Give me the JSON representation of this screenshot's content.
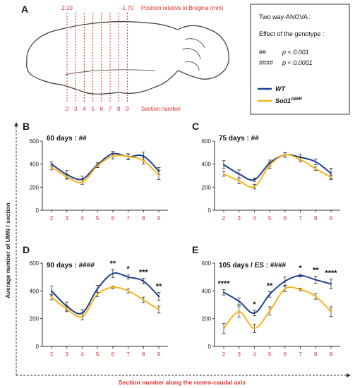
{
  "panel_a": {
    "letter": "A",
    "top_labels": [
      "2.10",
      "-1.70"
    ],
    "position_caption": "Position relative to Bregma (mm)",
    "section_numbers": [
      "2",
      "3",
      "4",
      "5",
      "6",
      "7",
      "8",
      "9"
    ],
    "section_caption": "Section number"
  },
  "stats_box": {
    "title": "Two way-ANOVA :",
    "subtitle": "Effect of the genotype :",
    "rows": [
      {
        "symbol": "##",
        "text": "p < 0.001"
      },
      {
        "symbol": "####",
        "text": "p < 0.0001"
      }
    ]
  },
  "legend": {
    "entries": [
      {
        "label": "WT",
        "superscript": "",
        "color": "#1f3f8f"
      },
      {
        "label": "Sod1",
        "superscript": "G86R",
        "color": "#f5b51b"
      }
    ]
  },
  "y_axis_label": "Average number of UMN / section",
  "x_axis_label": "Section number along the rostro-caudal axis",
  "colors": {
    "wt": "#1f3f8f",
    "mutant": "#f5b51b",
    "red": "#e03030"
  },
  "chart_data": [
    {
      "type": "line",
      "letter": "B",
      "title": "60 days : ##",
      "x": [
        2,
        3,
        4,
        5,
        6,
        7,
        8,
        9
      ],
      "ylim": [
        0,
        600
      ],
      "yticks": [
        "0",
        "200",
        "400",
        "600"
      ],
      "series": [
        {
          "name": "WT",
          "values": [
            400,
            310,
            270,
            395,
            490,
            465,
            470,
            340
          ],
          "err": [
            20,
            35,
            25,
            20,
            20,
            25,
            35,
            30
          ]
        },
        {
          "name": "Sod1G86R",
          "values": [
            375,
            290,
            245,
            385,
            470,
            465,
            430,
            305
          ],
          "err": [
            25,
            20,
            20,
            15,
            25,
            20,
            30,
            40
          ]
        }
      ],
      "stars": [
        "",
        "",
        "",
        "",
        "",
        "",
        "",
        ""
      ]
    },
    {
      "type": "line",
      "letter": "C",
      "title": "75 days : ##",
      "x": [
        2,
        3,
        4,
        5,
        6,
        7,
        8,
        9
      ],
      "ylim": [
        0,
        600
      ],
      "yticks": [
        "0",
        "200",
        "400",
        "600"
      ],
      "series": [
        {
          "name": "WT",
          "values": [
            395,
            315,
            265,
            410,
            480,
            460,
            420,
            320
          ],
          "err": [
            35,
            35,
            15,
            25,
            20,
            25,
            25,
            45
          ]
        },
        {
          "name": "Sod1G86R",
          "values": [
            315,
            255,
            205,
            390,
            480,
            440,
            360,
            285
          ],
          "err": [
            20,
            25,
            20,
            25,
            20,
            20,
            15,
            20
          ]
        }
      ],
      "stars": [
        "",
        "",
        "",
        "",
        "",
        "",
        "",
        ""
      ]
    },
    {
      "type": "line",
      "letter": "D",
      "title": "90 days : ####",
      "x": [
        2,
        3,
        4,
        5,
        6,
        7,
        8,
        9
      ],
      "ylim": [
        0,
        600
      ],
      "yticks": [
        "0",
        "200",
        "400",
        "600"
      ],
      "series": [
        {
          "name": "WT",
          "values": [
            400,
            290,
            240,
            415,
            525,
            500,
            470,
            360
          ],
          "err": [
            35,
            30,
            25,
            25,
            30,
            15,
            20,
            30
          ]
        },
        {
          "name": "Sod1G86R",
          "values": [
            355,
            270,
            215,
            375,
            425,
            400,
            335,
            265
          ],
          "err": [
            20,
            20,
            25,
            15,
            10,
            15,
            20,
            25
          ]
        }
      ],
      "stars": [
        "",
        "",
        "",
        "",
        "**",
        "*",
        "***",
        "**"
      ]
    },
    {
      "type": "line",
      "letter": "E",
      "title": "105 days / ES : ####",
      "x": [
        2,
        3,
        4,
        5,
        6,
        7,
        8,
        9
      ],
      "ylim": [
        0,
        600
      ],
      "yticks": [
        "0",
        "200",
        "400",
        "600"
      ],
      "series": [
        {
          "name": "WT",
          "values": [
            390,
            325,
            240,
            375,
            470,
            510,
            480,
            450
          ],
          "err": [
            20,
            25,
            20,
            20,
            30,
            10,
            25,
            35
          ]
        },
        {
          "name": "Sod1G86R",
          "values": [
            130,
            250,
            130,
            255,
            415,
            410,
            360,
            250
          ],
          "err": [
            35,
            40,
            30,
            30,
            20,
            10,
            20,
            35
          ]
        }
      ],
      "stars": [
        "****",
        "",
        "*",
        "**",
        "",
        "*",
        "**",
        "****"
      ]
    }
  ]
}
